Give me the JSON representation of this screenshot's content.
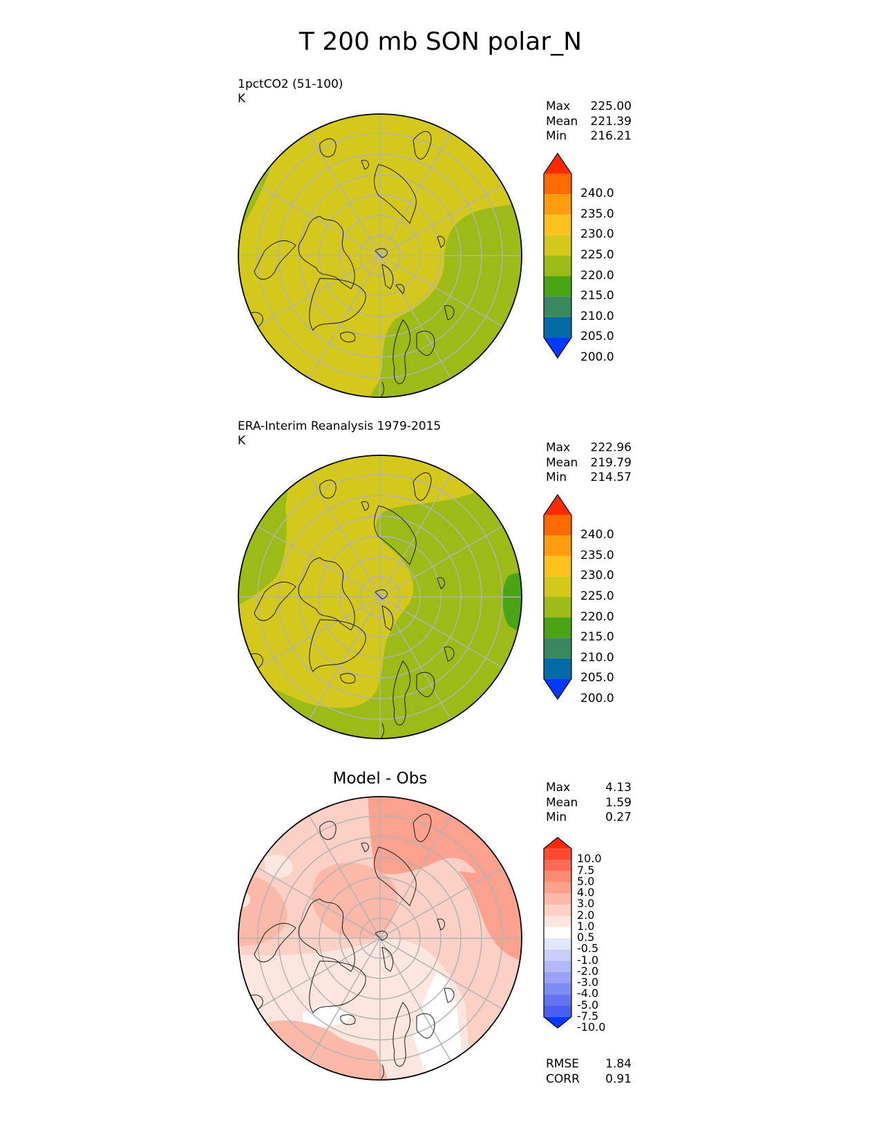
{
  "title": "T 200 mb SON polar_N",
  "panels": [
    {
      "label": "1pctCO2 (51-100)",
      "units": "K",
      "stats": {
        "max": "225.00",
        "mean": "221.39",
        "min": "216.21"
      },
      "stat_names": {
        "max": "Max",
        "mean": "Mean",
        "min": "Min"
      }
    },
    {
      "label": "ERA-Interim Reanalysis 1979-2015",
      "units": "K",
      "stats": {
        "max": "222.96",
        "mean": "219.79",
        "min": "214.57"
      },
      "stat_names": {
        "max": "Max",
        "mean": "Mean",
        "min": "Min"
      }
    },
    {
      "label": "Model - Obs",
      "stats": {
        "max": "4.13",
        "mean": "1.59",
        "min": "0.27"
      },
      "stat_names": {
        "max": "Max",
        "mean": "Mean",
        "min": "Min"
      },
      "metrics": {
        "rmse_label": "RMSE",
        "rmse": "1.84",
        "corr_label": "CORR",
        "corr": "0.91"
      }
    }
  ],
  "colorbar_abs": {
    "labels": [
      "240.0",
      "235.0",
      "230.0",
      "225.0",
      "220.0",
      "215.0",
      "210.0",
      "205.0",
      "200.0"
    ],
    "colors_top_to_bottom": [
      "#ff2a00",
      "#ff6a00",
      "#ff9c10",
      "#fcc21e",
      "#d4c81c",
      "#9dbb17",
      "#4aa516",
      "#3a8860",
      "#006ca3",
      "#0039ff"
    ]
  },
  "colorbar_diff": {
    "labels": [
      "10.0",
      "7.5",
      "5.0",
      "4.0",
      "3.0",
      "2.0",
      "1.0",
      "0.5",
      "-0.5",
      "-1.0",
      "-2.0",
      "-3.0",
      "-4.0",
      "-5.0",
      "-7.5",
      "-10.0"
    ],
    "colors_top_to_bottom": [
      "#ff2a00",
      "#fd4a30",
      "#fd6a55",
      "#fd8a72",
      "#fca18e",
      "#fcb8a8",
      "#fcd0c4",
      "#fde6df",
      "#ffffff",
      "#e2e6fb",
      "#c9cff8",
      "#b1baf6",
      "#98a3f3",
      "#7f8cf1",
      "#6474f1",
      "#4a5ef3",
      "#0039ff"
    ]
  },
  "map_colors": {
    "yellow_green": "#d4c81c",
    "light_green": "#9dbb17",
    "green": "#4aa516",
    "diff_base": "#fcd0c4",
    "diff_light": "#fde6df",
    "diff_mid": "#fcb8a8",
    "diff_strong": "#fca18e",
    "diff_white": "#ffffff"
  }
}
